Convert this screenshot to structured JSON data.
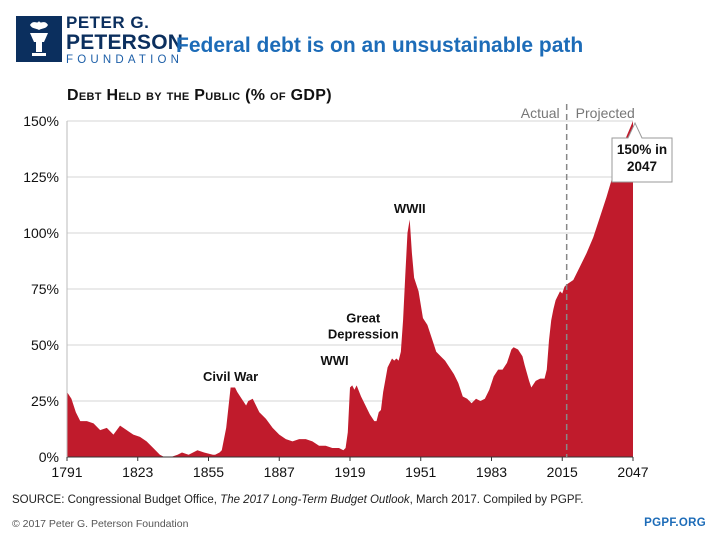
{
  "header": {
    "logo_line1": "PETER G.",
    "logo_line2": "PETERSON",
    "logo_line3": "FOUNDATION",
    "title": "Federal debt is on an unsustainable path"
  },
  "footer": {
    "source_prefix": "SOURCE: Congressional Budget Office, ",
    "source_italic": "The 2017 Long-Term Budget Outlook",
    "source_suffix": ", March 2017. Compiled by PGPF.",
    "copyright": "© 2017 Peter G. Peterson Foundation",
    "site": "PGPF.ORG"
  },
  "colors": {
    "area": "#c01b2c",
    "brand_navy": "#0b2f5e",
    "brand_blue": "#1d6cb8",
    "divider": "#888888"
  },
  "chart_data": {
    "type": "area",
    "title": "Debt Held by the Public (% of GDP)",
    "xlabel": "",
    "ylabel": "",
    "xlim": [
      1791,
      2047
    ],
    "ylim": [
      0,
      150
    ],
    "xticks": [
      "1791",
      "1823",
      "1855",
      "1887",
      "1919",
      "1951",
      "1983",
      "2015",
      "2047"
    ],
    "yticks": [
      "0%",
      "25%",
      "50%",
      "75%",
      "100%",
      "125%",
      "150%"
    ],
    "divider_year": 2017,
    "divider_labels": {
      "left": "Actual",
      "right": "Projected"
    },
    "annotations": [
      {
        "label": "Civil War",
        "x": 1865,
        "y": 34
      },
      {
        "label": "WWI",
        "x": 1912,
        "y": 41
      },
      {
        "label": "Great",
        "x": 1925,
        "y": 60
      },
      {
        "label": "Depression",
        "x": 1925,
        "y": 53
      },
      {
        "label": "WWII",
        "x": 1946,
        "y": 109
      }
    ],
    "callout": {
      "line1": "150% in",
      "line2": "2047",
      "x": 2047,
      "y": 150
    },
    "series": [
      {
        "name": "Debt held by the public (% of GDP)",
        "x": [
          1791,
          1793,
          1795,
          1797,
          1800,
          1803,
          1806,
          1809,
          1812,
          1815,
          1818,
          1821,
          1824,
          1827,
          1830,
          1833,
          1835,
          1838,
          1841,
          1843,
          1846,
          1848,
          1850,
          1853,
          1857,
          1858,
          1860,
          1861,
          1863,
          1865,
          1867,
          1868,
          1870,
          1872,
          1873,
          1875,
          1878,
          1881,
          1884,
          1887,
          1890,
          1893,
          1896,
          1899,
          1902,
          1905,
          1908,
          1911,
          1914,
          1916,
          1917,
          1918,
          1919,
          1920,
          1921,
          1922,
          1924,
          1926,
          1928,
          1930,
          1931,
          1932,
          1933,
          1934,
          1936,
          1938,
          1939,
          1940,
          1941,
          1942,
          1943,
          1944,
          1945,
          1946,
          1947,
          1948,
          1949,
          1950,
          1952,
          1954,
          1956,
          1958,
          1960,
          1962,
          1964,
          1966,
          1968,
          1970,
          1972,
          1974,
          1976,
          1978,
          1980,
          1982,
          1984,
          1986,
          1988,
          1990,
          1992,
          1993,
          1995,
          1997,
          1998,
          2000,
          2001,
          2003,
          2005,
          2007,
          2008,
          2009,
          2010,
          2011,
          2012,
          2013,
          2014,
          2015,
          2016,
          2017,
          2020,
          2023,
          2026,
          2029,
          2032,
          2035,
          2038,
          2041,
          2044,
          2047
        ],
        "values": [
          29,
          26,
          20,
          16,
          16,
          15,
          12,
          13,
          10,
          14,
          12,
          10,
          9,
          7,
          4,
          1,
          0,
          0,
          1,
          2,
          1,
          2,
          3,
          2,
          1,
          1,
          2,
          3,
          13,
          31,
          31,
          29,
          26,
          23,
          25,
          26,
          20,
          17,
          13,
          10,
          8,
          7,
          8,
          8,
          7,
          5,
          5,
          4,
          4,
          3,
          4,
          11,
          31,
          32,
          30,
          32,
          27,
          23,
          19,
          16,
          16,
          20,
          21,
          29,
          40,
          44,
          43,
          44,
          43,
          47,
          61,
          81,
          100,
          106,
          91,
          80,
          77,
          74,
          62,
          59,
          53,
          47,
          45,
          43,
          40,
          37,
          33,
          27,
          26,
          24,
          26,
          25,
          26,
          30,
          36,
          39,
          39,
          42,
          48,
          49,
          48,
          45,
          41,
          34,
          31,
          34,
          35,
          35,
          39,
          52,
          61,
          66,
          70,
          72,
          74,
          73,
          76,
          77,
          79,
          85,
          91,
          98,
          107,
          116,
          126,
          135,
          143,
          150
        ]
      }
    ]
  }
}
